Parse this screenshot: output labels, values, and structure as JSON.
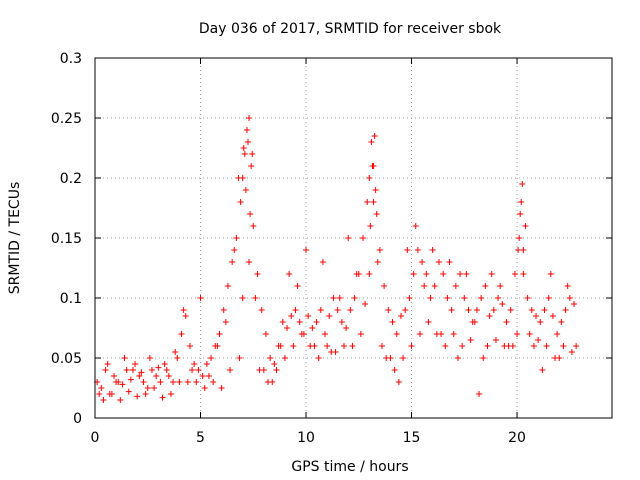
{
  "chart_data": {
    "type": "scatter",
    "title": "Day 036 of 2017, SRMTID for receiver sbok",
    "xlabel": "GPS time / hours",
    "ylabel": "SRMTID / TECUs",
    "xlim": [
      0,
      24.5
    ],
    "ylim": [
      0,
      0.3
    ],
    "xticks": [
      0,
      5,
      10,
      15,
      20
    ],
    "xtick_labels": [
      "0",
      "5",
      "10",
      "15",
      "20"
    ],
    "yticks": [
      0,
      0.05,
      0.1,
      0.15,
      0.2,
      0.25,
      0.3
    ],
    "ytick_labels": [
      "0",
      "0.05",
      "0.1",
      "0.15",
      "0.2",
      "0.25",
      "0.3"
    ],
    "grid": true,
    "marker": "plus",
    "series": [
      {
        "name": "SRMTID",
        "color": "#ff0000",
        "x": [
          0.1,
          0.3,
          0.5,
          0.7,
          0.9,
          1.1,
          1.3,
          1.5,
          1.7,
          1.9,
          2.1,
          2.3,
          2.5,
          2.7,
          2.9,
          3.1,
          3.3,
          3.5,
          3.7,
          3.9,
          4.1,
          4.3,
          4.5,
          4.7,
          4.9,
          5.1,
          5.3,
          5.5,
          5.7,
          5.9,
          6.1,
          6.3,
          6.5,
          6.7,
          6.9,
          7.0,
          7.1,
          7.2,
          7.3,
          7.4,
          7.5,
          7.7,
          7.9,
          8.1,
          8.3,
          8.5,
          8.7,
          8.9,
          9.1,
          9.3,
          9.5,
          9.7,
          9.9,
          10.1,
          10.3,
          10.5,
          10.7,
          10.9,
          11.1,
          11.3,
          11.5,
          11.7,
          11.9,
          12.1,
          12.3,
          12.5,
          12.7,
          12.9,
          13.0,
          13.1,
          13.2,
          13.3,
          13.5,
          13.7,
          13.9,
          14.1,
          14.3,
          14.5,
          14.7,
          14.9,
          15.1,
          15.3,
          15.5,
          15.7,
          15.9,
          16.1,
          16.3,
          16.5,
          16.7,
          16.9,
          17.1,
          17.3,
          17.5,
          17.7,
          17.9,
          18.1,
          18.3,
          18.5,
          18.7,
          18.9,
          19.1,
          19.3,
          19.5,
          19.7,
          19.9,
          20.1,
          20.2,
          20.3,
          20.5,
          20.7,
          20.9,
          21.1,
          21.3,
          21.5,
          21.7,
          21.9,
          22.1,
          22.3,
          22.5,
          22.7,
          0.2,
          0.6,
          1.0,
          1.4,
          1.8,
          2.2,
          2.6,
          3.0,
          3.4,
          3.8,
          4.2,
          4.6,
          5.0,
          5.4,
          5.8,
          6.2,
          6.6,
          6.8,
          7.05,
          7.15,
          7.25,
          7.35,
          7.6,
          8.0,
          8.4,
          8.8,
          9.2,
          9.6,
          10.0,
          10.4,
          10.8,
          11.2,
          11.6,
          12.0,
          12.4,
          12.8,
          13.05,
          13.15,
          13.25,
          13.35,
          13.6,
          14.0,
          14.4,
          14.8,
          15.2,
          15.6,
          16.0,
          16.4,
          16.8,
          17.2,
          17.6,
          18.0,
          18.4,
          18.8,
          19.2,
          19.6,
          20.0,
          20.15,
          20.25,
          20.4,
          20.8,
          21.2,
          21.6,
          22.0,
          22.4,
          22.8,
          0.4,
          0.8,
          1.2,
          1.6,
          2.0,
          2.4,
          2.8,
          3.2,
          3.6,
          4.0,
          4.4,
          4.8,
          5.2,
          5.6,
          6.0,
          6.4,
          6.85,
          7.0,
          7.3,
          7.45,
          7.8,
          8.2,
          8.6,
          9.0,
          9.4,
          9.8,
          10.2,
          10.6,
          11.0,
          11.4,
          11.8,
          12.2,
          12.6,
          13.0,
          13.2,
          13.4,
          13.8,
          14.2,
          14.6,
          15.0,
          15.4,
          15.8,
          16.2,
          16.6,
          17.0,
          17.4,
          17.8,
          18.2,
          18.6,
          19.0,
          19.4,
          19.8,
          20.05,
          20.3,
          20.6,
          21.0,
          21.4,
          21.8,
          22.2,
          22.6
        ],
        "y": [
          0.03,
          0.025,
          0.04,
          0.02,
          0.035,
          0.03,
          0.028,
          0.04,
          0.032,
          0.045,
          0.035,
          0.03,
          0.025,
          0.04,
          0.035,
          0.03,
          0.045,
          0.035,
          0.03,
          0.05,
          0.07,
          0.085,
          0.06,
          0.045,
          0.04,
          0.035,
          0.045,
          0.05,
          0.06,
          0.07,
          0.09,
          0.11,
          0.13,
          0.15,
          0.18,
          0.2,
          0.22,
          0.24,
          0.25,
          0.21,
          0.16,
          0.12,
          0.09,
          0.07,
          0.05,
          0.045,
          0.06,
          0.08,
          0.075,
          0.085,
          0.09,
          0.08,
          0.07,
          0.085,
          0.075,
          0.08,
          0.09,
          0.07,
          0.085,
          0.1,
          0.09,
          0.08,
          0.075,
          0.09,
          0.1,
          0.12,
          0.15,
          0.18,
          0.2,
          0.23,
          0.21,
          0.19,
          0.14,
          0.11,
          0.09,
          0.08,
          0.07,
          0.085,
          0.09,
          0.1,
          0.12,
          0.14,
          0.13,
          0.12,
          0.1,
          0.11,
          0.13,
          0.12,
          0.1,
          0.09,
          0.11,
          0.12,
          0.1,
          0.09,
          0.08,
          0.09,
          0.1,
          0.11,
          0.085,
          0.09,
          0.1,
          0.095,
          0.08,
          0.09,
          0.12,
          0.15,
          0.18,
          0.14,
          0.1,
          0.09,
          0.085,
          0.08,
          0.09,
          0.1,
          0.085,
          0.07,
          0.08,
          0.09,
          0.1,
          0.095,
          0.02,
          0.045,
          0.03,
          0.05,
          0.04,
          0.038,
          0.05,
          0.042,
          0.04,
          0.055,
          0.09,
          0.04,
          0.1,
          0.035,
          0.06,
          0.08,
          0.14,
          0.2,
          0.225,
          0.19,
          0.23,
          0.17,
          0.1,
          0.04,
          0.03,
          0.06,
          0.12,
          0.11,
          0.14,
          0.06,
          0.13,
          0.055,
          0.1,
          0.15,
          0.12,
          0.095,
          0.16,
          0.21,
          0.235,
          0.17,
          0.06,
          0.05,
          0.03,
          0.14,
          0.16,
          0.11,
          0.14,
          0.07,
          0.13,
          0.05,
          0.12,
          0.08,
          0.05,
          0.12,
          0.11,
          0.06,
          0.07,
          0.17,
          0.195,
          0.16,
          0.06,
          0.04,
          0.12,
          0.05,
          0.11,
          0.06,
          0.015,
          0.02,
          0.015,
          0.022,
          0.018,
          0.02,
          0.025,
          0.017,
          0.02,
          0.03,
          0.03,
          0.03,
          0.025,
          0.03,
          0.025,
          0.04,
          0.05,
          0.1,
          0.13,
          0.22,
          0.04,
          0.03,
          0.04,
          0.05,
          0.06,
          0.07,
          0.06,
          0.05,
          0.06,
          0.055,
          0.06,
          0.06,
          0.07,
          0.12,
          0.18,
          0.13,
          0.05,
          0.04,
          0.05,
          0.06,
          0.07,
          0.08,
          0.07,
          0.06,
          0.07,
          0.06,
          0.065,
          0.02,
          0.06,
          0.065,
          0.06,
          0.06,
          0.14,
          0.12,
          0.07,
          0.065,
          0.06,
          0.05,
          0.06,
          0.055
        ]
      }
    ]
  }
}
